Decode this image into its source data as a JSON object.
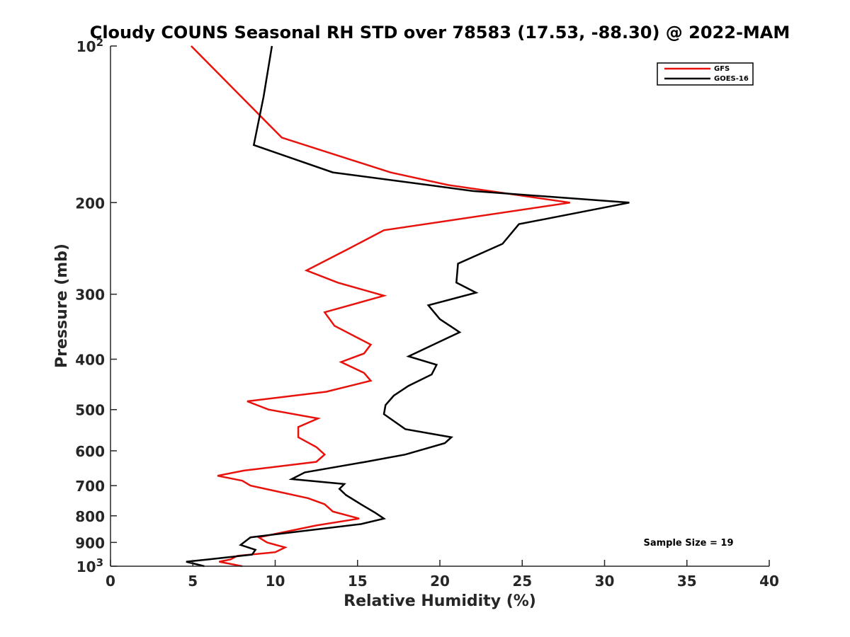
{
  "chart_data": {
    "type": "line",
    "title": "Cloudy COUNS Seasonal RH STD over 78583 (17.53, -88.30) @ 2022-MAM",
    "xlabel": "Relative Humidity (%)",
    "ylabel": "Pressure (mb)",
    "xlim": [
      0,
      40
    ],
    "ylim": [
      100,
      1000
    ],
    "yscale": "log",
    "y_reversed": true,
    "xticks": [
      0,
      5,
      10,
      15,
      20,
      25,
      30,
      35,
      40
    ],
    "yticks": [
      {
        "value": 100,
        "label": "10",
        "sup": "2"
      },
      {
        "value": 200,
        "label": "200"
      },
      {
        "value": 300,
        "label": "300"
      },
      {
        "value": 400,
        "label": "400"
      },
      {
        "value": 500,
        "label": "500"
      },
      {
        "value": 600,
        "label": "600"
      },
      {
        "value": 700,
        "label": "700"
      },
      {
        "value": 800,
        "label": "800"
      },
      {
        "value": 900,
        "label": "900"
      },
      {
        "value": 1000,
        "label": "10",
        "sup": "3"
      }
    ],
    "legend_position": "top-right",
    "grid": false,
    "series": [
      {
        "name": "GFS",
        "color": "#e8120c",
        "points": [
          [
            4.9,
            100
          ],
          [
            10.4,
            150
          ],
          [
            17.0,
            175
          ],
          [
            20.5,
            185
          ],
          [
            27.9,
            200
          ],
          [
            16.6,
            226
          ],
          [
            14.5,
            245
          ],
          [
            11.9,
            270
          ],
          [
            13.8,
            285
          ],
          [
            16.6,
            302
          ],
          [
            13.0,
            325
          ],
          [
            13.6,
            345
          ],
          [
            15.8,
            375
          ],
          [
            15.4,
            390
          ],
          [
            14.0,
            405
          ],
          [
            15.4,
            425
          ],
          [
            15.8,
            440
          ],
          [
            13.1,
            462
          ],
          [
            8.3,
            482
          ],
          [
            9.6,
            500
          ],
          [
            12.6,
            520
          ],
          [
            11.4,
            540
          ],
          [
            11.4,
            565
          ],
          [
            12.5,
            590
          ],
          [
            13.0,
            610
          ],
          [
            12.5,
            630
          ],
          [
            8.1,
            655
          ],
          [
            6.5,
            670
          ],
          [
            8.0,
            685
          ],
          [
            8.5,
            700
          ],
          [
            12.0,
            740
          ],
          [
            13.0,
            760
          ],
          [
            13.5,
            785
          ],
          [
            15.1,
            810
          ],
          [
            12.5,
            835
          ],
          [
            9.0,
            880
          ],
          [
            9.5,
            900
          ],
          [
            10.6,
            920
          ],
          [
            10.0,
            940
          ],
          [
            7.7,
            955
          ],
          [
            7.3,
            970
          ],
          [
            6.6,
            980
          ],
          [
            8.0,
            1000
          ]
        ]
      },
      {
        "name": "GOES-16",
        "color": "#000000",
        "points": [
          [
            9.8,
            100
          ],
          [
            9.3,
            125
          ],
          [
            8.7,
            155
          ],
          [
            13.5,
            175
          ],
          [
            19.3,
            185
          ],
          [
            22.0,
            190
          ],
          [
            31.5,
            200
          ],
          [
            24.8,
            220
          ],
          [
            23.8,
            240
          ],
          [
            21.1,
            262
          ],
          [
            21.0,
            285
          ],
          [
            22.2,
            298
          ],
          [
            19.3,
            315
          ],
          [
            20.0,
            335
          ],
          [
            21.2,
            355
          ],
          [
            18.1,
            395
          ],
          [
            19.8,
            410
          ],
          [
            19.5,
            428
          ],
          [
            18.1,
            450
          ],
          [
            17.2,
            470
          ],
          [
            16.7,
            490
          ],
          [
            16.6,
            510
          ],
          [
            17.9,
            545
          ],
          [
            20.7,
            565
          ],
          [
            20.3,
            580
          ],
          [
            17.9,
            610
          ],
          [
            15.5,
            630
          ],
          [
            11.8,
            660
          ],
          [
            11.0,
            680
          ],
          [
            14.2,
            695
          ],
          [
            13.9,
            710
          ],
          [
            14.3,
            730
          ],
          [
            15.2,
            760
          ],
          [
            16.1,
            790
          ],
          [
            16.6,
            810
          ],
          [
            15.2,
            830
          ],
          [
            8.5,
            880
          ],
          [
            7.9,
            910
          ],
          [
            8.8,
            930
          ],
          [
            8.6,
            950
          ],
          [
            6.0,
            970
          ],
          [
            4.6,
            980
          ],
          [
            5.7,
            1000
          ]
        ]
      }
    ],
    "annotation": "Sample Size = 19"
  }
}
